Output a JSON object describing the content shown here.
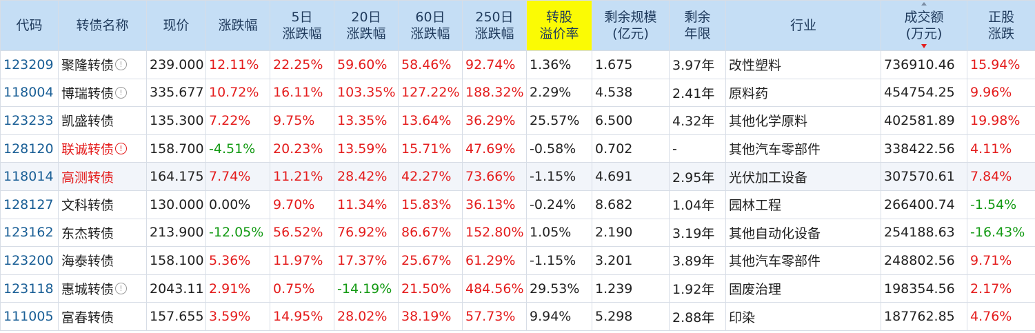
{
  "table": {
    "headers": {
      "code": "代码",
      "name": "转债名称",
      "price": "现价",
      "change": "涨跌幅",
      "chg5_line1": "5日",
      "chg5_line2": "涨跌幅",
      "chg20_line1": "20日",
      "chg20_line2": "涨跌幅",
      "chg60_line1": "60日",
      "chg60_line2": "涨跌幅",
      "chg250_line1": "250日",
      "chg250_line2": "涨跌幅",
      "premium_line1": "转股",
      "premium_line2": "溢价率",
      "scale_line1": "剩余规模",
      "scale_line2": "(亿元)",
      "term_line1": "剩余",
      "term_line2": "年限",
      "industry": "行业",
      "volume_line1": "成交额",
      "volume_line2": "(万元)",
      "stock_line1": "正股",
      "stock_line2": "涨跌"
    },
    "colors": {
      "up": "#e41c1c",
      "down": "#139a13",
      "header_bg": "#c5def5",
      "highlight": "#fbfb04",
      "code": "#1a5f96"
    },
    "rows": [
      {
        "code": "123209",
        "name": "聚隆转债",
        "name_red": false,
        "icon": "info-icon",
        "price": "239.000",
        "change": "12.11%",
        "chg5": "22.25%",
        "chg20": "59.60%",
        "chg60": "58.46%",
        "chg250": "92.74%",
        "premium": "1.36%",
        "scale": "1.675",
        "term": "3.97年",
        "industry": "改性塑料",
        "volume": "736910.46",
        "stock": "15.94%"
      },
      {
        "code": "118004",
        "name": "博瑞转债",
        "name_red": false,
        "icon": "info-icon",
        "price": "335.677",
        "change": "10.72%",
        "chg5": "16.11%",
        "chg20": "103.35%",
        "chg60": "127.22%",
        "chg250": "188.32%",
        "premium": "2.29%",
        "scale": "4.538",
        "term": "2.41年",
        "industry": "原料药",
        "volume": "454754.25",
        "stock": "9.96%"
      },
      {
        "code": "123233",
        "name": "凯盛转债",
        "name_red": false,
        "icon": "",
        "price": "135.300",
        "change": "7.22%",
        "chg5": "9.75%",
        "chg20": "13.35%",
        "chg60": "13.64%",
        "chg250": "36.29%",
        "premium": "25.57%",
        "scale": "6.500",
        "term": "4.32年",
        "industry": "其他化学原料",
        "volume": "402581.89",
        "stock": "19.98%"
      },
      {
        "code": "128120",
        "name": "联诚转债",
        "name_red": true,
        "icon": "warning-icon",
        "price": "158.700",
        "change": "-4.51%",
        "chg5": "20.23%",
        "chg20": "13.59%",
        "chg60": "15.71%",
        "chg250": "47.69%",
        "premium": "-0.58%",
        "scale": "0.702",
        "term": "-",
        "industry": "其他汽车零部件",
        "volume": "338422.56",
        "stock": "4.11%"
      },
      {
        "code": "118014",
        "name": "高测转债",
        "name_red": true,
        "icon": "",
        "price": "164.175",
        "change": "7.74%",
        "chg5": "11.21%",
        "chg20": "28.42%",
        "chg60": "42.27%",
        "chg250": "73.66%",
        "premium": "-1.15%",
        "scale": "4.691",
        "term": "2.95年",
        "industry": "光伏加工设备",
        "volume": "307570.61",
        "stock": "7.84%"
      },
      {
        "code": "128127",
        "name": "文科转债",
        "name_red": false,
        "icon": "",
        "price": "130.000",
        "change": "0.00%",
        "chg5": "9.70%",
        "chg20": "11.34%",
        "chg60": "15.83%",
        "chg250": "36.13%",
        "premium": "-0.24%",
        "scale": "8.682",
        "term": "1.04年",
        "industry": "园林工程",
        "volume": "266400.74",
        "stock": "-1.54%"
      },
      {
        "code": "123162",
        "name": "东杰转债",
        "name_red": false,
        "icon": "",
        "price": "213.900",
        "change": "-12.05%",
        "chg5": "56.52%",
        "chg20": "76.92%",
        "chg60": "86.67%",
        "chg250": "152.80%",
        "premium": "1.05%",
        "scale": "2.190",
        "term": "3.19年",
        "industry": "其他自动化设备",
        "volume": "254188.63",
        "stock": "-16.43%"
      },
      {
        "code": "123200",
        "name": "海泰转债",
        "name_red": false,
        "icon": "",
        "price": "158.100",
        "change": "5.36%",
        "chg5": "11.97%",
        "chg20": "17.37%",
        "chg60": "25.67%",
        "chg250": "61.29%",
        "premium": "-1.15%",
        "scale": "3.201",
        "term": "3.89年",
        "industry": "其他汽车零部件",
        "volume": "248802.56",
        "stock": "9.71%"
      },
      {
        "code": "123118",
        "name": "惠城转债",
        "name_red": false,
        "icon": "info-icon",
        "price": "2043.11",
        "change": "2.91%",
        "chg5": "0.75%",
        "chg20": "-14.19%",
        "chg60": "21.50%",
        "chg250": "484.56%",
        "premium": "29.53%",
        "scale": "1.239",
        "term": "1.92年",
        "industry": "固废治理",
        "volume": "198354.56",
        "stock": "2.17%"
      },
      {
        "code": "111005",
        "name": "富春转债",
        "name_red": false,
        "icon": "",
        "price": "157.655",
        "change": "3.59%",
        "chg5": "14.95%",
        "chg20": "28.02%",
        "chg60": "38.19%",
        "chg250": "57.73%",
        "premium": "9.94%",
        "scale": "5.298",
        "term": "2.88年",
        "industry": "印染",
        "volume": "187762.85",
        "stock": "4.76%"
      }
    ]
  }
}
